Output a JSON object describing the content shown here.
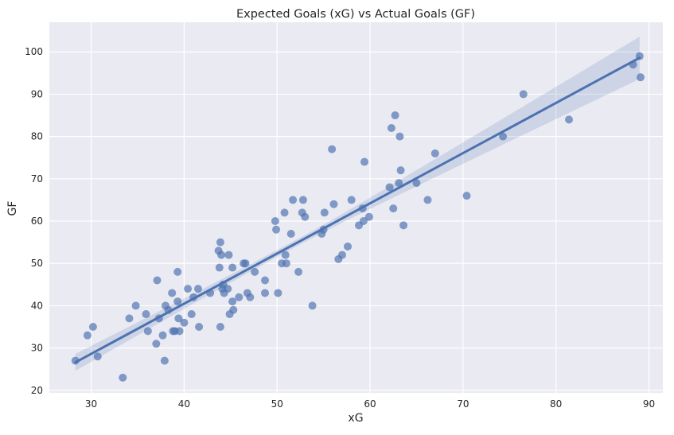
{
  "chart_data": {
    "type": "scatter",
    "title": "Expected Goals (xG) vs Actual Goals (GF)",
    "xlabel": "xG",
    "ylabel": "GF",
    "xlim": [
      25.5,
      91.5
    ],
    "ylim": [
      19.4,
      107
    ],
    "xticks": [
      30,
      40,
      50,
      60,
      70,
      80,
      90
    ],
    "yticks": [
      20,
      30,
      40,
      50,
      60,
      70,
      80,
      90,
      100
    ],
    "grid": true,
    "colors": {
      "background": "#eaeaf2",
      "grid": "#ffffff",
      "points": "#4c72b0",
      "regression_line": "#4c72b0",
      "confidence_band": "#4c72b0"
    },
    "regression": {
      "x_range": [
        28.3,
        89.0
      ],
      "y_range": [
        26.6,
        98.6
      ],
      "band_lower_at_start": 24.6,
      "band_upper_at_start": 28.6,
      "band_lower_at_end": 93.6,
      "band_upper_at_end": 103.6,
      "band_narrowest_x": 52.0,
      "band_halfwidth_at_narrowest": 0.8
    },
    "points": [
      {
        "x": 28.3,
        "y": 27
      },
      {
        "x": 29.6,
        "y": 33
      },
      {
        "x": 30.2,
        "y": 35
      },
      {
        "x": 30.7,
        "y": 28
      },
      {
        "x": 33.4,
        "y": 23
      },
      {
        "x": 34.1,
        "y": 37
      },
      {
        "x": 34.8,
        "y": 40
      },
      {
        "x": 35.9,
        "y": 38
      },
      {
        "x": 36.1,
        "y": 34
      },
      {
        "x": 37.0,
        "y": 31
      },
      {
        "x": 37.1,
        "y": 46
      },
      {
        "x": 37.3,
        "y": 37
      },
      {
        "x": 37.7,
        "y": 33
      },
      {
        "x": 37.9,
        "y": 27
      },
      {
        "x": 38.0,
        "y": 40
      },
      {
        "x": 38.3,
        "y": 39
      },
      {
        "x": 38.7,
        "y": 43
      },
      {
        "x": 38.8,
        "y": 34
      },
      {
        "x": 39.0,
        "y": 34
      },
      {
        "x": 39.3,
        "y": 48
      },
      {
        "x": 39.3,
        "y": 41
      },
      {
        "x": 39.4,
        "y": 37
      },
      {
        "x": 39.5,
        "y": 34
      },
      {
        "x": 40.0,
        "y": 36
      },
      {
        "x": 40.4,
        "y": 44
      },
      {
        "x": 40.8,
        "y": 38
      },
      {
        "x": 41.0,
        "y": 42
      },
      {
        "x": 41.5,
        "y": 44
      },
      {
        "x": 41.6,
        "y": 35
      },
      {
        "x": 42.8,
        "y": 43
      },
      {
        "x": 43.7,
        "y": 53
      },
      {
        "x": 43.8,
        "y": 49
      },
      {
        "x": 43.9,
        "y": 55
      },
      {
        "x": 43.9,
        "y": 35
      },
      {
        "x": 44.0,
        "y": 52
      },
      {
        "x": 44.1,
        "y": 44
      },
      {
        "x": 44.2,
        "y": 45
      },
      {
        "x": 44.3,
        "y": 43
      },
      {
        "x": 44.7,
        "y": 44
      },
      {
        "x": 44.8,
        "y": 52
      },
      {
        "x": 44.9,
        "y": 38
      },
      {
        "x": 45.2,
        "y": 49
      },
      {
        "x": 45.2,
        "y": 41
      },
      {
        "x": 45.3,
        "y": 39
      },
      {
        "x": 45.9,
        "y": 42
      },
      {
        "x": 46.4,
        "y": 50
      },
      {
        "x": 46.6,
        "y": 50
      },
      {
        "x": 46.8,
        "y": 43
      },
      {
        "x": 47.1,
        "y": 42
      },
      {
        "x": 47.6,
        "y": 48
      },
      {
        "x": 48.7,
        "y": 46
      },
      {
        "x": 48.7,
        "y": 43
      },
      {
        "x": 49.8,
        "y": 60
      },
      {
        "x": 49.9,
        "y": 58
      },
      {
        "x": 50.1,
        "y": 43
      },
      {
        "x": 50.5,
        "y": 50
      },
      {
        "x": 50.8,
        "y": 62
      },
      {
        "x": 50.9,
        "y": 52
      },
      {
        "x": 51.0,
        "y": 50
      },
      {
        "x": 51.5,
        "y": 57
      },
      {
        "x": 51.7,
        "y": 65
      },
      {
        "x": 52.3,
        "y": 48
      },
      {
        "x": 52.7,
        "y": 62
      },
      {
        "x": 52.8,
        "y": 65
      },
      {
        "x": 53.0,
        "y": 61
      },
      {
        "x": 53.8,
        "y": 40
      },
      {
        "x": 54.8,
        "y": 57
      },
      {
        "x": 55.0,
        "y": 58
      },
      {
        "x": 55.1,
        "y": 62
      },
      {
        "x": 55.9,
        "y": 77
      },
      {
        "x": 56.1,
        "y": 64
      },
      {
        "x": 56.6,
        "y": 51
      },
      {
        "x": 57.0,
        "y": 52
      },
      {
        "x": 57.6,
        "y": 54
      },
      {
        "x": 58.0,
        "y": 65
      },
      {
        "x": 58.8,
        "y": 59
      },
      {
        "x": 59.2,
        "y": 63
      },
      {
        "x": 59.3,
        "y": 60
      },
      {
        "x": 59.4,
        "y": 74
      },
      {
        "x": 59.9,
        "y": 61
      },
      {
        "x": 62.1,
        "y": 68
      },
      {
        "x": 62.3,
        "y": 82
      },
      {
        "x": 62.5,
        "y": 63
      },
      {
        "x": 62.7,
        "y": 85
      },
      {
        "x": 63.1,
        "y": 69
      },
      {
        "x": 63.2,
        "y": 80
      },
      {
        "x": 63.3,
        "y": 72
      },
      {
        "x": 63.6,
        "y": 59
      },
      {
        "x": 65.0,
        "y": 69
      },
      {
        "x": 66.2,
        "y": 65
      },
      {
        "x": 67.0,
        "y": 76
      },
      {
        "x": 70.4,
        "y": 66
      },
      {
        "x": 74.3,
        "y": 80
      },
      {
        "x": 76.5,
        "y": 90
      },
      {
        "x": 81.4,
        "y": 84
      },
      {
        "x": 88.3,
        "y": 97
      },
      {
        "x": 89.0,
        "y": 99
      },
      {
        "x": 89.1,
        "y": 94
      }
    ]
  }
}
